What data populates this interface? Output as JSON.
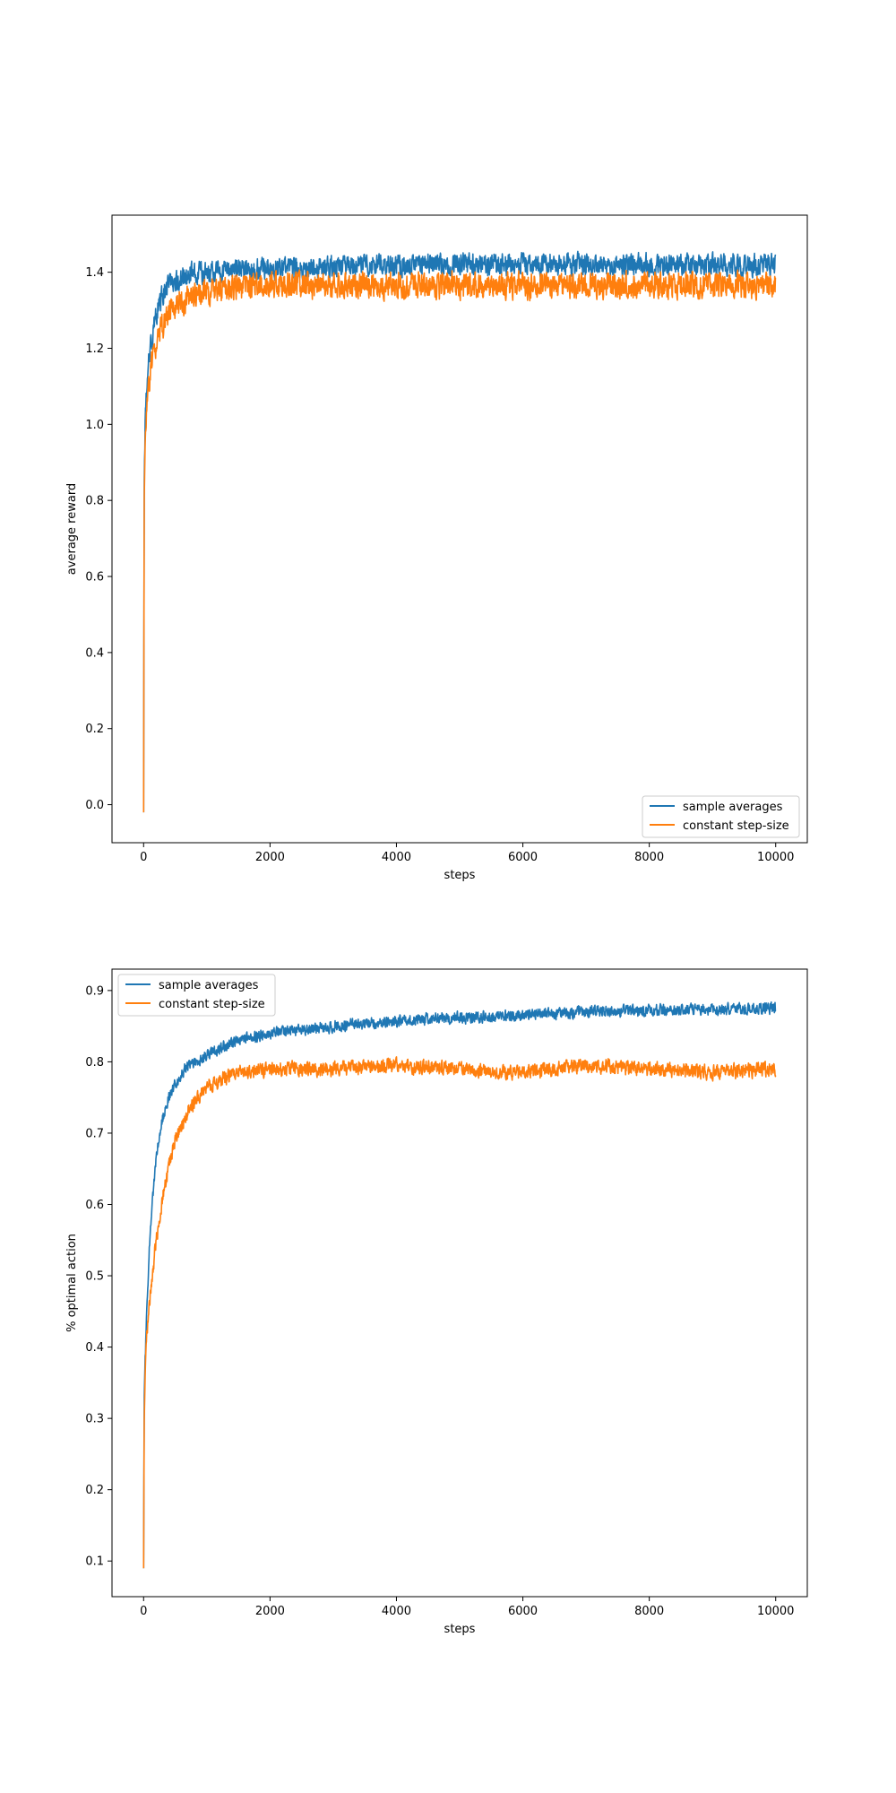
{
  "chart_data": [
    {
      "type": "line",
      "title": "",
      "xlabel": "steps",
      "ylabel": "average reward",
      "xlim": [
        -500,
        10500
      ],
      "ylim": [
        -0.1,
        1.55
      ],
      "xticks": [
        0,
        2000,
        4000,
        6000,
        8000,
        10000
      ],
      "xtick_labels": [
        "0",
        "2000",
        "4000",
        "6000",
        "8000",
        "10000"
      ],
      "yticks": [
        0.0,
        0.2,
        0.4,
        0.6,
        0.8,
        1.0,
        1.2,
        1.4
      ],
      "ytick_labels": [
        "0.0",
        "0.2",
        "0.4",
        "0.6",
        "0.8",
        "1.0",
        "1.2",
        "1.4"
      ],
      "grid": false,
      "legend_position": "lower-right",
      "series": [
        {
          "name": "sample averages",
          "color": "#1f77b4",
          "x": [
            0,
            10,
            25,
            50,
            100,
            200,
            300,
            400,
            500,
            700,
            1000,
            1500,
            2000,
            3000,
            4000,
            5000,
            6000,
            7000,
            8000,
            9000,
            10000
          ],
          "y": [
            -0.02,
            0.85,
            1.0,
            1.1,
            1.2,
            1.29,
            1.34,
            1.37,
            1.38,
            1.395,
            1.4,
            1.41,
            1.41,
            1.415,
            1.42,
            1.42,
            1.42,
            1.42,
            1.42,
            1.42,
            1.42
          ],
          "noise_amplitude": 0.025
        },
        {
          "name": "constant step-size",
          "color": "#ff7f0e",
          "x": [
            0,
            10,
            25,
            50,
            100,
            200,
            300,
            400,
            500,
            700,
            1000,
            1500,
            2000,
            3000,
            4000,
            5000,
            6000,
            7000,
            8000,
            9000,
            10000
          ],
          "y": [
            -0.02,
            0.8,
            0.95,
            1.05,
            1.13,
            1.21,
            1.26,
            1.29,
            1.31,
            1.33,
            1.35,
            1.36,
            1.365,
            1.365,
            1.365,
            1.365,
            1.365,
            1.365,
            1.365,
            1.365,
            1.365
          ],
          "noise_amplitude": 0.03
        }
      ]
    },
    {
      "type": "line",
      "title": "",
      "xlabel": "steps",
      "ylabel": "% optimal action",
      "xlim": [
        -500,
        10500
      ],
      "ylim": [
        0.05,
        0.93
      ],
      "xticks": [
        0,
        2000,
        4000,
        6000,
        8000,
        10000
      ],
      "xtick_labels": [
        "0",
        "2000",
        "4000",
        "6000",
        "8000",
        "10000"
      ],
      "yticks": [
        0.1,
        0.2,
        0.3,
        0.4,
        0.5,
        0.6,
        0.7,
        0.8,
        0.9
      ],
      "ytick_labels": [
        "0.1",
        "0.2",
        "0.3",
        "0.4",
        "0.5",
        "0.6",
        "0.7",
        "0.8",
        "0.9"
      ],
      "grid": false,
      "legend_position": "upper-left",
      "series": [
        {
          "name": "sample averages",
          "color": "#1f77b4",
          "x": [
            0,
            10,
            25,
            50,
            100,
            200,
            300,
            400,
            500,
            700,
            1000,
            1500,
            2000,
            3000,
            4000,
            5000,
            6000,
            7000,
            8000,
            9000,
            10000
          ],
          "y": [
            0.09,
            0.33,
            0.38,
            0.45,
            0.56,
            0.67,
            0.72,
            0.75,
            0.77,
            0.795,
            0.81,
            0.83,
            0.84,
            0.85,
            0.857,
            0.862,
            0.866,
            0.87,
            0.872,
            0.874,
            0.875
          ],
          "noise_amplitude": 0.007
        },
        {
          "name": "constant step-size",
          "color": "#ff7f0e",
          "x": [
            0,
            10,
            25,
            50,
            100,
            200,
            300,
            400,
            500,
            700,
            1000,
            1500,
            2000,
            3000,
            4000,
            5000,
            6000,
            7000,
            8000,
            9000,
            10000
          ],
          "y": [
            0.09,
            0.3,
            0.36,
            0.42,
            0.47,
            0.55,
            0.61,
            0.65,
            0.69,
            0.73,
            0.765,
            0.785,
            0.79,
            0.79,
            0.795,
            0.79,
            0.785,
            0.795,
            0.79,
            0.785,
            0.79
          ],
          "noise_amplitude": 0.009
        }
      ]
    }
  ]
}
